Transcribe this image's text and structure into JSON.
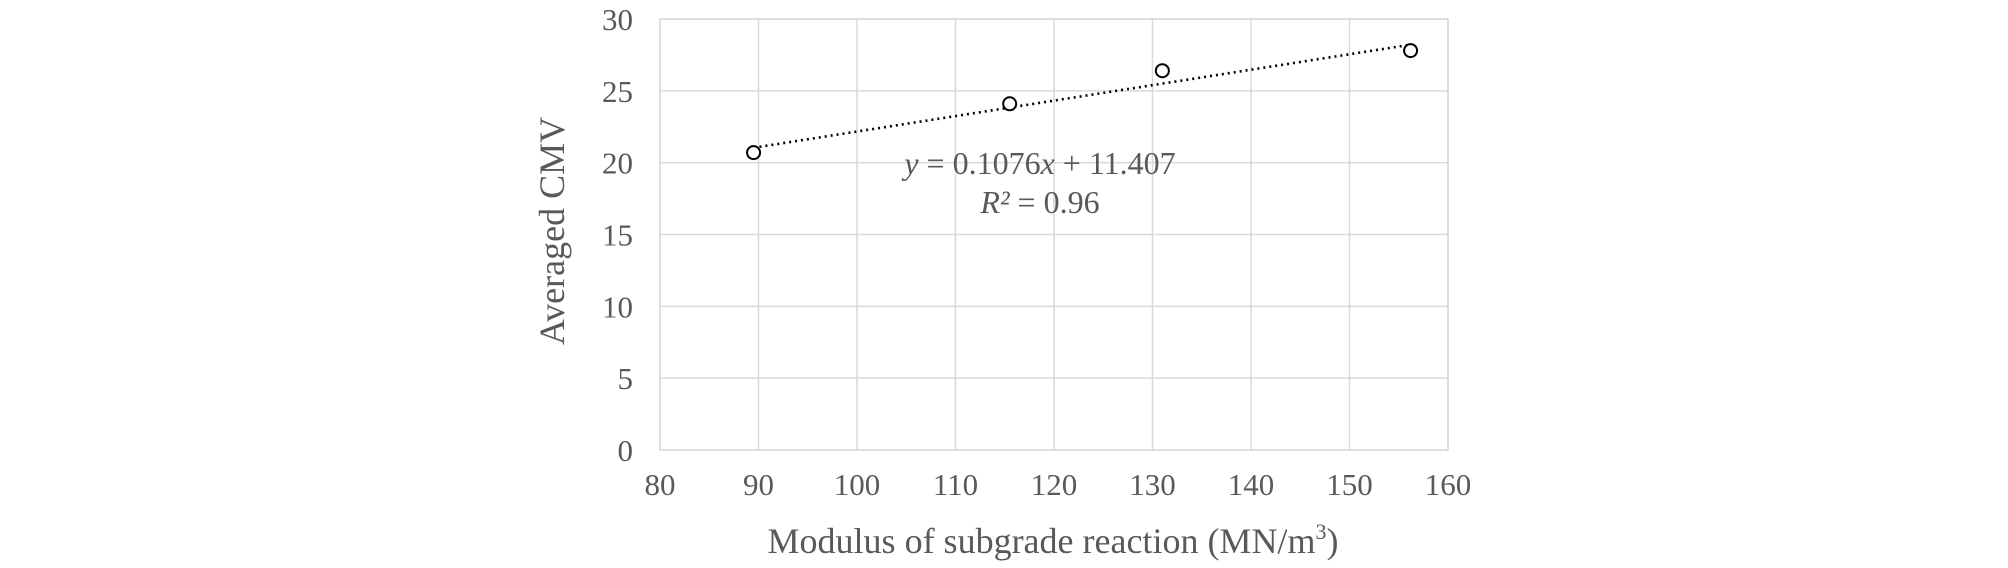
{
  "chart_data": {
    "type": "scatter",
    "xlabel": "Modulus of subgrade reaction (MN/m",
    "xlabel_sup": "3",
    "xlabel_end": ")",
    "ylabel": "Averaged CMV",
    "xlim": [
      80,
      160
    ],
    "ylim": [
      0,
      30
    ],
    "x_ticks": [
      "80",
      "90",
      "100",
      "110",
      "120",
      "130",
      "140",
      "150",
      "160"
    ],
    "y_ticks": [
      "0",
      "5",
      "10",
      "15",
      "20",
      "25",
      "30"
    ],
    "grid": true,
    "series": [
      {
        "x": [
          89.5,
          115.5,
          131,
          156.2
        ],
        "y": [
          20.7,
          24.1,
          26.4,
          27.8
        ]
      }
    ],
    "trendline": {
      "type": "linear",
      "slope": 0.1076,
      "intercept": 11.407,
      "x_range": [
        89.5,
        156.2
      ],
      "equation_prefix": "y",
      "equation_mid": " = 0.1076",
      "equation_var": "x",
      "equation_suffix": " + 11.407",
      "r2_prefix": "R²",
      "r2_suffix": " = 0.96"
    },
    "colors": {
      "text": "#595959",
      "grid": "#d9d9d9",
      "marker": "#000000"
    }
  }
}
